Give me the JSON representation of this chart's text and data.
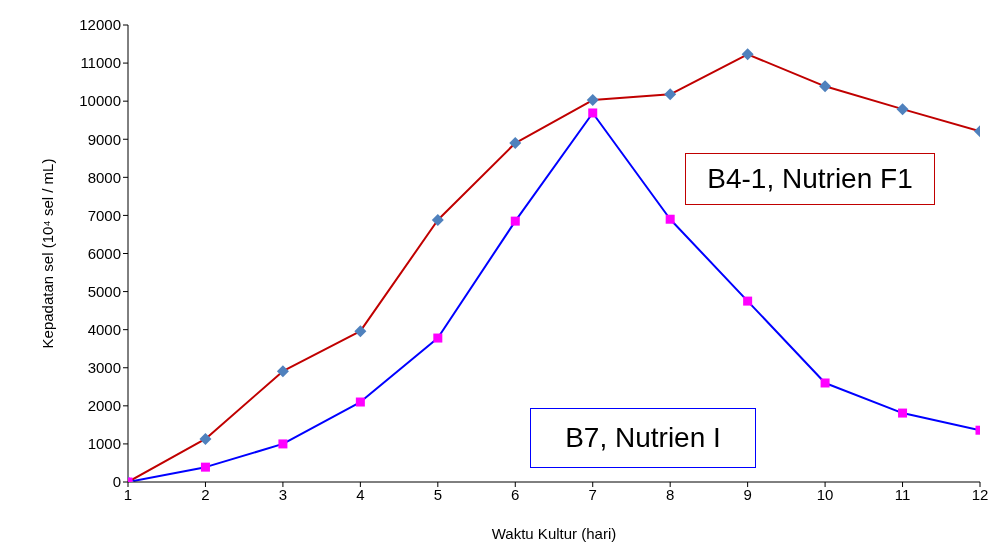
{
  "chart_data": {
    "type": "line",
    "xlabel": "Waktu Kultur (hari)",
    "ylabel": "Kepadatan sel (10⁴ sel / mL)",
    "x": [
      1,
      2,
      3,
      4,
      5,
      6,
      7,
      8,
      9,
      10,
      11,
      12
    ],
    "xlim": [
      1,
      12
    ],
    "xticks": [
      1,
      2,
      3,
      4,
      5,
      6,
      7,
      8,
      9,
      10,
      11,
      12
    ],
    "ylim": [
      0,
      12000
    ],
    "yticks": [
      0,
      1000,
      2000,
      3000,
      4000,
      5000,
      6000,
      7000,
      8000,
      9000,
      10000,
      11000,
      12000
    ],
    "grid": false,
    "legend": false,
    "series": [
      {
        "name": "B4-1, Nutrien F1",
        "color": "#c00000",
        "marker": "diamond",
        "colors": [
          "#4f81bd",
          "#4f81bd",
          "#4f81bd",
          "#4f81bd",
          "#4f81bd",
          "#4f81bd",
          "#4f81bd",
          "#4f81bd",
          "#4f81bd",
          "#4f81bd",
          "#4f81bd",
          "#4f81bd"
        ],
        "values": [
          0,
          1130,
          2910,
          3960,
          6880,
          8900,
          10030,
          10180,
          11230,
          10390,
          9790,
          9210
        ]
      },
      {
        "name": "B7, Nutrien I",
        "color": "#0000ff",
        "marker": "square",
        "colors": [
          "#ff00ff",
          "#ff00ff",
          "#ff00ff",
          "#ff00ff",
          "#ff00ff",
          "#ff00ff",
          "#ff00ff",
          "#ff00ff",
          "#ff00ff",
          "#ff00ff",
          "#ff00ff",
          "#ff00ff"
        ],
        "values": [
          0,
          390,
          1000,
          2100,
          3780,
          6850,
          9690,
          6900,
          4750,
          2600,
          1810,
          1360
        ]
      }
    ]
  }
}
